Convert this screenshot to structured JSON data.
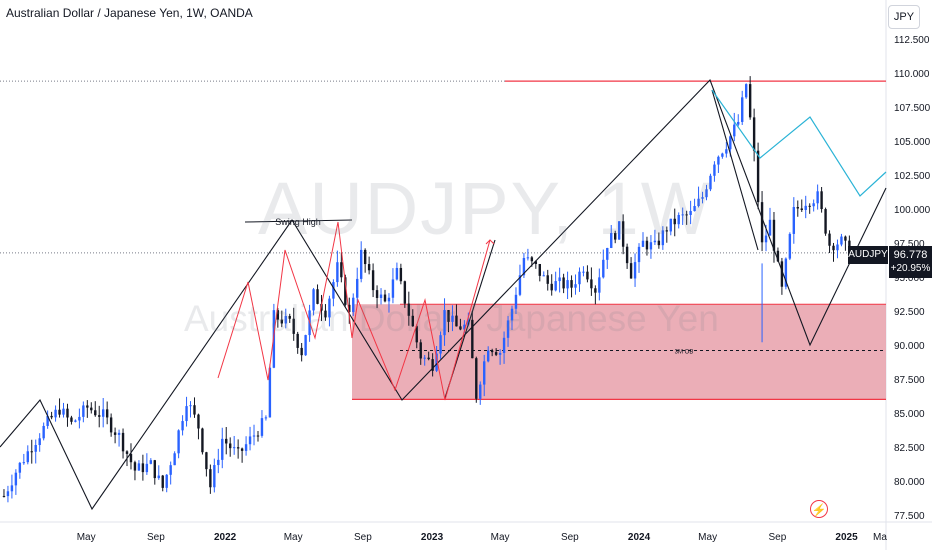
{
  "header": {
    "title": "Australian Dollar / Japanese Yen, 1W, OANDA",
    "currency_button": "JPY"
  },
  "watermark": {
    "symbol": "AUDJPY, 1W",
    "name": "Australian Dollar / Japanese Yen"
  },
  "price_label": {
    "symbol": "AUDJPY",
    "price": "96.778",
    "change": "+20.95%"
  },
  "alert_icon": "lightning-icon",
  "colors": {
    "up": "#2962ff",
    "down": "#131722",
    "zone_fill": "#e8a0aa",
    "zone_line": "#f23645",
    "projection_cyan": "#2ab3d6",
    "swing_red": "#f23645",
    "structure_black": "#131722"
  },
  "annotations": {
    "swing_high": "Swing High",
    "ob_label": "3M OB"
  },
  "chart_data": {
    "type": "candlestick",
    "y_axis": {
      "ticks": [
        "112.500",
        "110.000",
        "107.500",
        "105.000",
        "102.500",
        "100.000",
        "97.500",
        "95.000",
        "92.500",
        "90.000",
        "87.500",
        "85.000",
        "82.500",
        "80.000",
        "77.500"
      ],
      "range": [
        77.5,
        113.5
      ],
      "position": "right"
    },
    "x_axis": {
      "ticks": [
        "May",
        "Sep",
        "2022",
        "May",
        "Sep",
        "2023",
        "May",
        "Sep",
        "2024",
        "May",
        "Sep",
        "2025",
        "Ma"
      ]
    },
    "resistance_level": 109.4,
    "zone": {
      "top": 93.0,
      "bottom": 86.0,
      "midline": 89.6
    },
    "current_price": 96.778,
    "price_path": [
      [
        "2020-12-07",
        78.9
      ],
      [
        "2020-12-28",
        80.7
      ],
      [
        "2021-01-25",
        82.6
      ],
      [
        "2021-02-22",
        84.3
      ],
      [
        "2021-03-15",
        85.3
      ],
      [
        "2021-04-05",
        84.2
      ],
      [
        "2021-05-03",
        85.4
      ],
      [
        "2021-05-31",
        84.8
      ],
      [
        "2021-06-28",
        83.3
      ],
      [
        "2021-07-26",
        80.8
      ],
      [
        "2021-08-23",
        81.2
      ],
      [
        "2021-09-13",
        79.5
      ],
      [
        "2021-10-04",
        82.4
      ],
      [
        "2021-10-25",
        86.0
      ],
      [
        "2021-11-15",
        84.0
      ],
      [
        "2021-12-06",
        79.6
      ],
      [
        "2021-12-27",
        83.1
      ],
      [
        "2022-01-24",
        81.9
      ],
      [
        "2022-02-21",
        83.4
      ],
      [
        "2022-03-14",
        84.5
      ],
      [
        "2022-03-28",
        92.1
      ],
      [
        "2022-04-25",
        91.6
      ],
      [
        "2022-05-16",
        89.5
      ],
      [
        "2022-06-06",
        93.7
      ],
      [
        "2022-06-27",
        92.5
      ],
      [
        "2022-07-18",
        95.7
      ],
      [
        "2022-08-08",
        92.2
      ],
      [
        "2022-08-29",
        96.7
      ],
      [
        "2022-09-19",
        94.2
      ],
      [
        "2022-10-10",
        93.1
      ],
      [
        "2022-10-31",
        95.3
      ],
      [
        "2022-11-21",
        92.3
      ],
      [
        "2022-12-12",
        89.2
      ],
      [
        "2023-01-02",
        88.6
      ],
      [
        "2023-01-23",
        92.4
      ],
      [
        "2023-02-13",
        91.3
      ],
      [
        "2023-03-06",
        91.4
      ],
      [
        "2023-03-20",
        86.3
      ],
      [
        "2023-04-10",
        90.0
      ],
      [
        "2023-05-01",
        89.5
      ],
      [
        "2023-05-22",
        92.7
      ],
      [
        "2023-06-12",
        96.4
      ],
      [
        "2023-07-03",
        95.7
      ],
      [
        "2023-07-24",
        94.5
      ],
      [
        "2023-08-14",
        94.5
      ],
      [
        "2023-09-04",
        94.3
      ],
      [
        "2023-09-25",
        95.8
      ],
      [
        "2023-10-16",
        94.1
      ],
      [
        "2023-11-06",
        97.5
      ],
      [
        "2023-11-27",
        98.6
      ],
      [
        "2023-12-18",
        95.3
      ],
      [
        "2024-01-08",
        97.5
      ],
      [
        "2024-01-29",
        97.2
      ],
      [
        "2024-02-19",
        98.6
      ],
      [
        "2024-03-11",
        99.3
      ],
      [
        "2024-04-01",
        99.6
      ],
      [
        "2024-04-22",
        100.9
      ],
      [
        "2024-05-13",
        103.6
      ],
      [
        "2024-06-03",
        104.8
      ],
      [
        "2024-06-24",
        106.4
      ],
      [
        "2024-07-08",
        109.2
      ],
      [
        "2024-07-22",
        104.0
      ],
      [
        "2024-08-05",
        97.3
      ],
      [
        "2024-08-19",
        99.0
      ],
      [
        "2024-09-09",
        94.0
      ],
      [
        "2024-09-30",
        99.8
      ],
      [
        "2024-10-21",
        100.6
      ],
      [
        "2024-11-11",
        100.9
      ],
      [
        "2024-12-02",
        97.4
      ],
      [
        "2024-12-23",
        97.6
      ],
      [
        "2025-01-06",
        96.8
      ]
    ]
  }
}
